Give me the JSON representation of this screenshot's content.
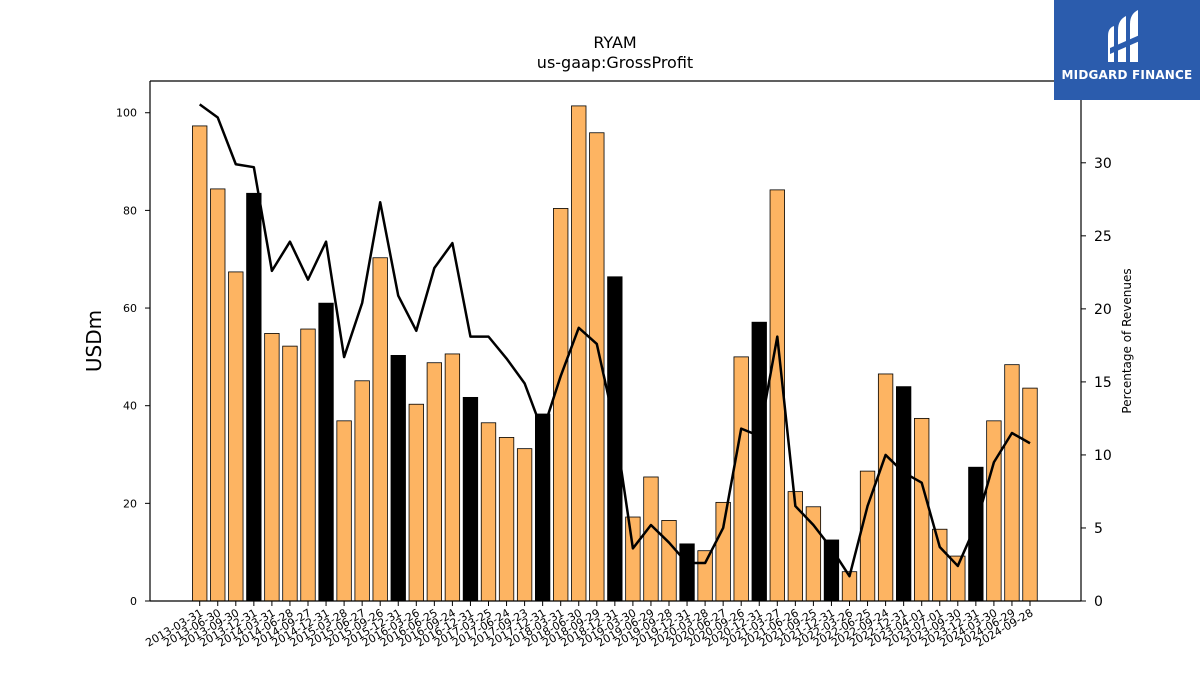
{
  "chart_data": {
    "type": "bar",
    "title": "RYAM",
    "subtitle": "us-gaap:GrossProfit",
    "ylabel": "USDm",
    "y2label": "Percentage of Revenues",
    "ylim": [
      0,
      106.5
    ],
    "y2lim": [
      0,
      35.6
    ],
    "yticks": [
      0,
      20,
      40,
      60,
      80,
      100
    ],
    "y2ticks": [
      0,
      5,
      10,
      15,
      20,
      25,
      30
    ],
    "categories": [
      "2013-03-31",
      "2013-06-30",
      "2013-09-30",
      "2013-12-31",
      "2014-03-31",
      "2014-06-28",
      "2014-09-27",
      "2014-12-31",
      "2015-03-28",
      "2015-06-27",
      "2015-09-26",
      "2015-12-31",
      "2016-03-26",
      "2016-06-25",
      "2016-09-24",
      "2016-12-31",
      "2017-03-25",
      "2017-06-24",
      "2017-09-23",
      "2017-12-31",
      "2018-03-31",
      "2018-06-30",
      "2018-09-29",
      "2018-12-31",
      "2019-03-30",
      "2019-06-29",
      "2019-09-28",
      "2019-12-31",
      "2020-03-28",
      "2020-06-27",
      "2020-09-26",
      "2020-12-31",
      "2021-03-27",
      "2021-06-26",
      "2021-09-25",
      "2021-12-31",
      "2022-03-26",
      "2022-06-25",
      "2022-09-24",
      "2022-12-31",
      "2023-04-01",
      "2023-07-01",
      "2023-09-30",
      "2023-12-31",
      "2024-03-30",
      "2024-06-29",
      "2024-09-28"
    ],
    "series": [
      {
        "type": "bar",
        "values": [
          97.3,
          84.4,
          67.4,
          83.5,
          54.8,
          52.2,
          55.7,
          61.0,
          36.9,
          45.1,
          70.3,
          50.3,
          40.3,
          48.8,
          50.6,
          41.7,
          36.5,
          33.5,
          31.2,
          38.3,
          80.4,
          101.4,
          95.9,
          66.4,
          17.2,
          25.4,
          16.5,
          11.7,
          10.3,
          20.2,
          50.0,
          57.1,
          84.2,
          22.4,
          19.3,
          12.5,
          6.0,
          26.6,
          46.5,
          43.9,
          37.4,
          14.7,
          9.2,
          27.4,
          36.9,
          48.4,
          43.6
        ]
      },
      {
        "type": "line",
        "axis": "right",
        "values": [
          34.0,
          33.1,
          29.9,
          29.7,
          22.6,
          24.6,
          22.0,
          24.6,
          16.7,
          20.4,
          27.3,
          20.9,
          18.5,
          22.8,
          24.5,
          18.1,
          18.1,
          16.6,
          14.9,
          11.6,
          15.4,
          18.7,
          17.6,
          12.0,
          3.6,
          5.2,
          4.0,
          2.6,
          2.6,
          5.0,
          11.8,
          11.3,
          18.1,
          6.5,
          5.2,
          3.6,
          1.7,
          6.5,
          10.0,
          8.8,
          8.1,
          3.7,
          2.4,
          5.2,
          9.5,
          11.5,
          10.8
        ]
      }
    ],
    "highlight_indices": [
      3,
      7,
      11,
      15,
      19,
      23,
      27,
      31,
      35,
      39,
      43
    ],
    "colors": {
      "bar": "#fdb462",
      "bar_highlight": "#000000",
      "bar_edge": "#000000",
      "line": "#000000"
    },
    "grid": false
  },
  "logo": {
    "text": "MIDGARD FINANCE",
    "background": "#2b5cad"
  }
}
